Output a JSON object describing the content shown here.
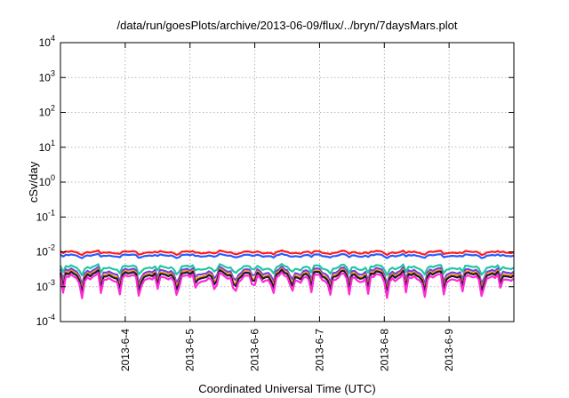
{
  "chart_data": {
    "type": "line",
    "title": "/data/run/goesPlots/archive/2013-06-09/flux/../bryn/7daysMars.plot",
    "xlabel": "Coordinated Universal Time (UTC)",
    "ylabel": "cSv/day",
    "yscale": "log",
    "ylim": [
      0.0001,
      10000
    ],
    "y_ticks": [
      {
        "value": 0.0001,
        "base": "10",
        "exp": "-4"
      },
      {
        "value": 0.001,
        "base": "10",
        "exp": "-3"
      },
      {
        "value": 0.01,
        "base": "10",
        "exp": "-2"
      },
      {
        "value": 0.1,
        "base": "10",
        "exp": "-1"
      },
      {
        "value": 1,
        "base": "10",
        "exp": "0"
      },
      {
        "value": 10,
        "base": "10",
        "exp": "1"
      },
      {
        "value": 100,
        "base": "10",
        "exp": "2"
      },
      {
        "value": 1000,
        "base": "10",
        "exp": "3"
      },
      {
        "value": 10000,
        "base": "10",
        "exp": "4"
      }
    ],
    "xlim": [
      "2013-06-03 00:00",
      "2013-06-10 00:00"
    ],
    "x_ticks": [
      "2013-6-4",
      "2013-6-5",
      "2013-6-6",
      "2013-6-7",
      "2013-6-8",
      "2013-6-9"
    ],
    "x_tick_days": [
      1,
      2,
      3,
      4,
      5,
      6
    ],
    "grid": true,
    "series": [
      {
        "color": "#ff1a1a",
        "base": 0.0098,
        "amp": 0.12,
        "spike": 0.03
      },
      {
        "color": "#2a5cff",
        "base": 0.0079,
        "amp": 0.11,
        "spike": 0.03
      },
      {
        "color": "#1fc7a0",
        "base": 0.0036,
        "amp": 0.22,
        "spike": 0.1
      },
      {
        "color": "#7a3fe0",
        "base": 0.0028,
        "amp": 0.3,
        "spike": 0.18
      },
      {
        "color": "#ff9a00",
        "base": 0.0024,
        "amp": 0.32,
        "spike": 0.22
      },
      {
        "color": "#1a1a3a",
        "base": 0.0022,
        "amp": 0.33,
        "spike": 0.24
      },
      {
        "color": "#ff2ad4",
        "base": 0.0018,
        "amp": 0.36,
        "spike": 0.28
      }
    ]
  }
}
